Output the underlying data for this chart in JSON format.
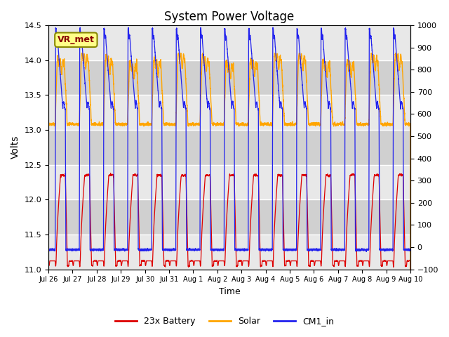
{
  "title": "System Power Voltage",
  "xlabel": "Time",
  "ylabel_left": "Volts",
  "ylim_left": [
    11.0,
    14.5
  ],
  "ylim_right": [
    -100,
    1000
  ],
  "yticks_left": [
    11.0,
    11.5,
    12.0,
    12.5,
    13.0,
    13.5,
    14.0,
    14.5
  ],
  "yticks_right": [
    -100,
    0,
    100,
    200,
    300,
    400,
    500,
    600,
    700,
    800,
    900,
    1000
  ],
  "xtick_labels": [
    "Jul 26",
    "Jul 27",
    "Jul 28",
    "Jul 29",
    "Jul 30",
    "Jul 31",
    "Aug 1",
    "Aug 2",
    "Aug 3",
    "Aug 4",
    "Aug 5",
    "Aug 6",
    "Aug 7",
    "Aug 8",
    "Aug 9",
    "Aug 10"
  ],
  "n_days": 15,
  "color_battery": "#dd0000",
  "color_solar": "#ffa500",
  "color_cm1": "#2222ee",
  "annotation_text": "VR_met",
  "legend_labels": [
    "23x Battery",
    "Solar",
    "CM1_in"
  ],
  "bg_color_light": "#e8e8e8",
  "bg_color_dark": "#d0d0d0",
  "grid_color": "white",
  "battery_base": 11.12,
  "battery_low": 11.05,
  "battery_peak": 12.35,
  "solar_base": 13.08,
  "solar_peak": 14.02,
  "cm1_base": 11.28,
  "cm1_peak": 14.45
}
